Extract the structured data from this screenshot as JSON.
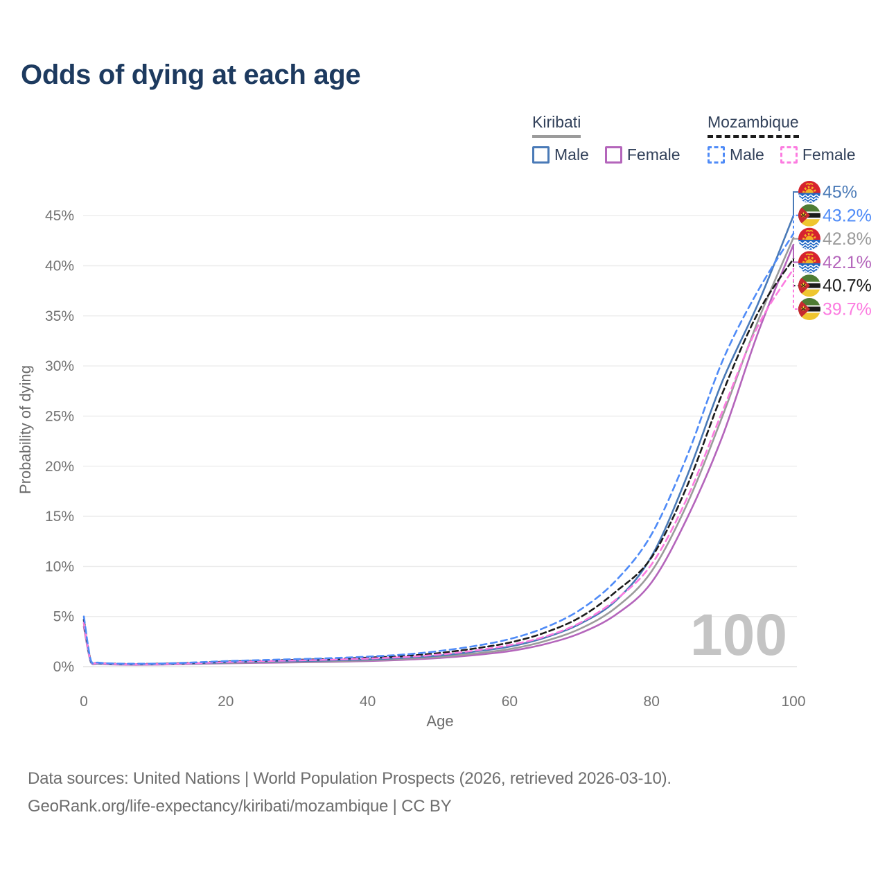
{
  "title": "Odds of dying at each age",
  "legend": {
    "groups": [
      {
        "label": "Kiribati",
        "series_id": "kir_b",
        "items": [
          {
            "label": "Male",
            "series_id": "kir_m"
          },
          {
            "label": "Female",
            "series_id": "kir_f"
          }
        ]
      },
      {
        "label": "Mozambique",
        "series_id": "moz_b",
        "items": [
          {
            "label": "Male",
            "series_id": "moz_m"
          },
          {
            "label": "Female",
            "series_id": "moz_f"
          }
        ]
      }
    ]
  },
  "chart_data": {
    "type": "line",
    "title": "Odds of dying at each age",
    "xlabel": "Age",
    "ylabel": "Probability of dying",
    "x_ticks": [
      0,
      20,
      40,
      60,
      80,
      100
    ],
    "y_ticks_pct": [
      0,
      5,
      10,
      15,
      20,
      25,
      30,
      35,
      40,
      45
    ],
    "xlim": [
      0,
      100
    ],
    "ylim_pct": [
      0,
      48
    ],
    "grid": "horizontal",
    "legend_position": "top-right",
    "watermark": "100",
    "ages": [
      0,
      1,
      2,
      5,
      10,
      15,
      20,
      25,
      30,
      35,
      40,
      45,
      50,
      55,
      60,
      65,
      70,
      75,
      80,
      85,
      90,
      95,
      100
    ],
    "series": [
      {
        "id": "kir_m",
        "name": "Kiribati Male",
        "country": "Kiribati",
        "sex": "Male",
        "color": "#4a7ab7",
        "dash": "solid",
        "flag": "kiribati",
        "end_label": "45%",
        "values_pct": [
          4.6,
          0.45,
          0.32,
          0.25,
          0.25,
          0.32,
          0.42,
          0.5,
          0.55,
          0.62,
          0.72,
          0.88,
          1.1,
          1.5,
          2.0,
          2.9,
          4.3,
          6.6,
          11.0,
          19.0,
          28.5,
          36.2,
          45.0
        ]
      },
      {
        "id": "moz_m",
        "name": "Mozambique Male",
        "country": "Mozambique",
        "sex": "Male",
        "color": "#4f8bf7",
        "dash": "dashed",
        "flag": "mozambique",
        "end_label": "43.2%",
        "values_pct": [
          5.0,
          0.6,
          0.4,
          0.3,
          0.3,
          0.4,
          0.55,
          0.65,
          0.75,
          0.85,
          1.0,
          1.2,
          1.55,
          2.05,
          2.75,
          3.9,
          5.7,
          8.6,
          13.2,
          21.0,
          30.5,
          37.5,
          43.2
        ]
      },
      {
        "id": "kir_b",
        "name": "Kiribati Both sexes",
        "country": "Kiribati",
        "sex": "Both sexes",
        "color": "#9b9b9b",
        "dash": "solid",
        "flag": "kiribati",
        "end_label": "42.8%",
        "values_pct": [
          4.3,
          0.42,
          0.3,
          0.23,
          0.23,
          0.29,
          0.37,
          0.43,
          0.48,
          0.54,
          0.63,
          0.77,
          0.97,
          1.3,
          1.75,
          2.55,
          3.8,
          5.9,
          9.5,
          16.2,
          25.0,
          34.5,
          42.8
        ]
      },
      {
        "id": "kir_f",
        "name": "Kiribati Female",
        "country": "Kiribati",
        "sex": "Female",
        "color": "#b465bb",
        "dash": "solid",
        "flag": "kiribati",
        "end_label": "42.1%",
        "values_pct": [
          4.0,
          0.4,
          0.28,
          0.2,
          0.2,
          0.26,
          0.33,
          0.38,
          0.43,
          0.48,
          0.56,
          0.68,
          0.86,
          1.15,
          1.55,
          2.25,
          3.35,
          5.2,
          8.4,
          14.8,
          23.0,
          33.3,
          42.1
        ]
      },
      {
        "id": "moz_b",
        "name": "Mozambique Both sexes",
        "country": "Mozambique",
        "sex": "Both sexes",
        "color": "#1c1c1c",
        "dash": "dashed",
        "flag": "mozambique",
        "end_label": "40.7%",
        "values_pct": [
          4.7,
          0.55,
          0.37,
          0.28,
          0.28,
          0.37,
          0.5,
          0.6,
          0.68,
          0.76,
          0.9,
          1.05,
          1.35,
          1.8,
          2.4,
          3.4,
          4.95,
          7.5,
          10.9,
          18.0,
          27.3,
          35.3,
          40.7
        ]
      },
      {
        "id": "moz_f",
        "name": "Mozambique Female",
        "country": "Mozambique",
        "sex": "Female",
        "color": "#fc7be0",
        "dash": "dashed",
        "flag": "mozambique",
        "end_label": "39.7%",
        "values_pct": [
          4.4,
          0.5,
          0.35,
          0.25,
          0.25,
          0.33,
          0.45,
          0.55,
          0.62,
          0.7,
          0.8,
          0.95,
          1.2,
          1.6,
          2.15,
          3.0,
          4.4,
          6.7,
          10.2,
          16.8,
          25.5,
          34.0,
          39.7
        ]
      }
    ],
    "end_labels_order": [
      "kir_m",
      "moz_m",
      "kir_b",
      "kir_f",
      "moz_b",
      "moz_f"
    ],
    "draw_order": [
      "kir_f",
      "kir_b",
      "kir_m",
      "moz_b",
      "moz_f",
      "moz_m"
    ]
  },
  "footer": {
    "line1": "Data sources: United Nations | World Population Prospects (2026, retrieved 2026-03-10).",
    "line2": "GeoRank.org/life-expectancy/kiribati/mozambique | CC BY"
  }
}
